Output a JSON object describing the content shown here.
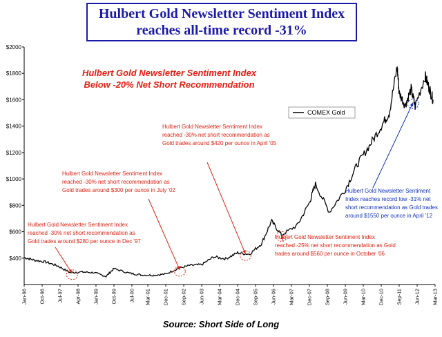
{
  "header": {
    "title_line1": "Hulbert Gold Newsletter Sentiment Index",
    "title_line2": "reaches all-time record -31%"
  },
  "source": "Source: Short Side of Long",
  "colors": {
    "title": "#1a1aa8",
    "annotation_red": "#e02010",
    "annotation_blue": "#1030c0",
    "line": "#000000"
  },
  "chart_data": {
    "type": "line",
    "title": "",
    "xlabel": "",
    "ylabel": "",
    "ylim": [
      200,
      2000
    ],
    "xlim": [
      "1996-01",
      "2013-03"
    ],
    "y_ticks": [
      "$2000",
      "$1800",
      "$1600",
      "$1400",
      "$1200",
      "$1000",
      "$800",
      "$600",
      "$400"
    ],
    "y_tick_values": [
      2000,
      1800,
      1600,
      1400,
      1200,
      1000,
      800,
      600,
      400
    ],
    "x_ticks": [
      "Jan-96",
      "Oct-96",
      "Jul-97",
      "Apr-98",
      "Jan-99",
      "Oct-99",
      "Jul-00",
      "Mar-01",
      "Dec-01",
      "Sep-02",
      "Jun-03",
      "Mar-04",
      "Dec-04",
      "Sep-05",
      "Jun-06",
      "Mar-07",
      "Dec-07",
      "Sep-08",
      "Jun-09",
      "Mar-10",
      "Dec-10",
      "Sep-11",
      "Jun-12",
      "Mar-13"
    ],
    "x_tick_dates": [
      "1996-01",
      "1996-10",
      "1997-07",
      "1998-04",
      "1999-01",
      "1999-10",
      "2000-07",
      "2001-03",
      "2001-12",
      "2002-09",
      "2003-06",
      "2004-03",
      "2004-12",
      "2005-09",
      "2006-06",
      "2007-03",
      "2007-12",
      "2008-09",
      "2009-06",
      "2010-03",
      "2010-12",
      "2011-09",
      "2012-06",
      "2013-03"
    ],
    "grid": false,
    "legend": {
      "placement": "upper-right",
      "entry": "COMEX Gold"
    },
    "series": [
      {
        "name": "COMEX Gold",
        "x": [
          "1996-01",
          "1996-06",
          "1996-12",
          "1997-06",
          "1997-12",
          "1998-06",
          "1998-12",
          "1999-06",
          "1999-10",
          "2000-06",
          "2000-12",
          "2001-06",
          "2001-12",
          "2002-06",
          "2002-12",
          "2003-06",
          "2003-12",
          "2004-06",
          "2004-12",
          "2005-06",
          "2005-12",
          "2006-05",
          "2006-10",
          "2007-06",
          "2007-12",
          "2008-03",
          "2008-10",
          "2009-06",
          "2009-12",
          "2010-06",
          "2010-12",
          "2011-04",
          "2011-08",
          "2011-09",
          "2011-12",
          "2012-03",
          "2012-05",
          "2012-10",
          "2012-12",
          "2013-02"
        ],
        "y": [
          405,
          385,
          370,
          340,
          290,
          295,
          290,
          262,
          320,
          285,
          272,
          270,
          280,
          320,
          345,
          350,
          410,
          395,
          440,
          430,
          510,
          680,
          575,
          650,
          820,
          960,
          750,
          920,
          1110,
          1250,
          1400,
          1500,
          1850,
          1650,
          1560,
          1680,
          1550,
          1780,
          1690,
          1600
        ]
      }
    ],
    "annotations": [
      {
        "heading": "Hulbert Gold Newsletter Sentiment Index",
        "subheading": "Below -20% Net Short Recommendation",
        "color": "red"
      },
      {
        "lines": [
          "Hulbert Gold Newsletter Sentiment Index",
          "reached -30% net short recommendation as",
          "Gold trades  around $280 per ounce in Dec '97"
        ],
        "target_date": "1998-01",
        "target_value": 285,
        "color": "red"
      },
      {
        "lines": [
          "Hulbert Gold Newsletter Sentiment Index",
          "reached -30% net short recommendation as",
          "Gold trades around $300 per ounce in  July '02"
        ],
        "target_date": "2002-07",
        "target_value": 310,
        "color": "red"
      },
      {
        "lines": [
          "Hulbert Gold Newsletter Sentiment Index",
          "reached -30% net short recommendation as",
          "Gold trades around $420 per ounce in April '05"
        ],
        "target_date": "2005-04",
        "target_value": 430,
        "color": "red"
      },
      {
        "lines": [
          "Hulbert Gold Newsletter Sentiment Index",
          "reached -25% net short recommendation as Gold",
          "trades around $560 per ounce in October '06"
        ],
        "target_date": "2006-10",
        "target_value": 575,
        "color": "red"
      },
      {
        "lines": [
          "Hulbert Gold Newsletter Sentiment",
          "Index reaches record low -31% net",
          "short recommendation as Gold trades",
          "around $1550 per ounce in  April '12"
        ],
        "target_date": "2012-04",
        "target_value": 1580,
        "color": "blue"
      }
    ]
  }
}
